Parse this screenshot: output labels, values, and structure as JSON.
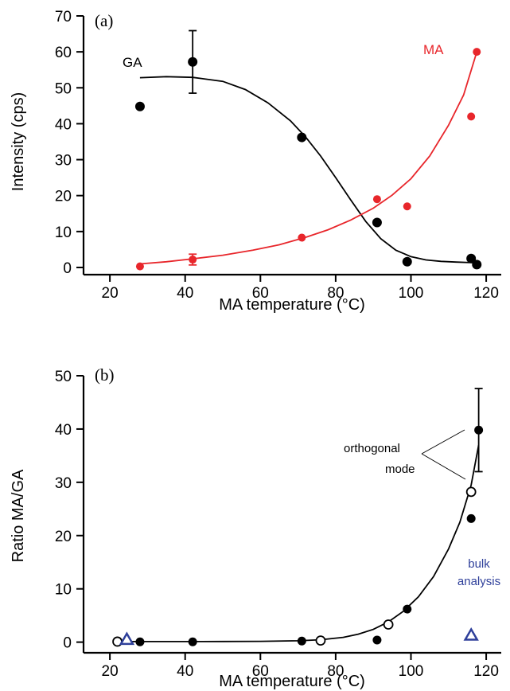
{
  "chart_data": [
    {
      "type": "scatter",
      "panel_label": "(a)",
      "xlabel": "MA temperature (°C)",
      "ylabel": "Intensity (cps)",
      "xlim": [
        13,
        124
      ],
      "ylim": [
        -2,
        70
      ],
      "xticks": [
        20,
        40,
        60,
        80,
        100,
        120
      ],
      "yticks": [
        0,
        10,
        20,
        30,
        40,
        50,
        60,
        70
      ],
      "grid": false,
      "series": [
        {
          "name": "GA",
          "color": "#000000",
          "x": [
            28,
            42,
            71,
            91,
            99,
            116,
            117.5
          ],
          "y": [
            44.8,
            57.2,
            36.2,
            12.5,
            1.6,
            2.5,
            0.8
          ],
          "error": [
            null,
            8.7,
            null,
            null,
            null,
            null,
            null
          ],
          "fit": {
            "x": [
              28,
              35,
              42,
              50,
              56,
              62,
              68,
              72,
              76,
              80,
              84,
              88,
              92,
              96,
              100,
              104,
              108,
              112,
              117.5
            ],
            "y": [
              52.8,
              53.1,
              52.9,
              51.8,
              49.5,
              45.8,
              40.8,
              36.3,
              31.0,
              25.0,
              18.8,
              12.8,
              8.0,
              4.8,
              3.0,
              2.1,
              1.7,
              1.5,
              1.3
            ]
          }
        },
        {
          "name": "MA",
          "color": "#e8262b",
          "x": [
            28,
            42,
            71,
            91,
            99,
            116,
            117.5
          ],
          "y": [
            0.3,
            2.2,
            8.3,
            19.0,
            17.0,
            42.0,
            60.0
          ],
          "error": [
            null,
            1.5,
            null,
            null,
            null,
            null,
            null
          ],
          "fit": {
            "x": [
              28,
              35,
              42,
              50,
              58,
              65,
              72,
              78,
              84,
              90,
              95,
              100,
              105,
              110,
              114,
              117.5
            ],
            "y": [
              1.0,
              1.6,
              2.4,
              3.4,
              4.8,
              6.3,
              8.4,
              10.5,
              13.2,
              16.5,
              20.1,
              24.7,
              31.0,
              39.6,
              48.0,
              60.0
            ]
          }
        }
      ]
    },
    {
      "type": "scatter",
      "panel_label": "(b)",
      "xlabel": "MA temperature (°C)",
      "ylabel": "Ratio MA/GA",
      "xlim": [
        13,
        124
      ],
      "ylim": [
        -2,
        50
      ],
      "xticks": [
        20,
        40,
        60,
        80,
        100,
        120
      ],
      "yticks": [
        0,
        10,
        20,
        30,
        40,
        50
      ],
      "grid": false,
      "series": [
        {
          "name": "",
          "marker": "filled-circle",
          "color": "#000000",
          "x": [
            28,
            42,
            71,
            91,
            99,
            116,
            118
          ],
          "y": [
            0.05,
            0.05,
            0.2,
            0.4,
            6.2,
            23.2,
            39.8
          ],
          "error": [
            null,
            null,
            null,
            null,
            null,
            null,
            7.8
          ]
        },
        {
          "name": "",
          "marker": "open-circle",
          "color": "#000000",
          "x": [
            22,
            76,
            94,
            116
          ],
          "y": [
            0.1,
            0.3,
            3.3,
            28.2
          ],
          "error": [
            null,
            null,
            null,
            null
          ]
        },
        {
          "name": "",
          "marker": "open-triangle",
          "color": "#2e3f9a",
          "x": [
            24.5,
            116
          ],
          "y": [
            0.4,
            1.2
          ],
          "error": [
            null,
            null
          ]
        }
      ],
      "fit": {
        "x": [
          22,
          30,
          40,
          50,
          60,
          70,
          76,
          82,
          86,
          90,
          94,
          98,
          102,
          106,
          110,
          113,
          116,
          118
        ],
        "y": [
          0.1,
          0.1,
          0.1,
          0.12,
          0.15,
          0.25,
          0.45,
          0.9,
          1.5,
          2.4,
          3.8,
          5.8,
          8.5,
          12.3,
          17.5,
          22.5,
          29.5,
          37.0
        ]
      },
      "annotations": {
        "orthogonal": "orthogonal",
        "mode": "mode",
        "bulk": "bulk",
        "analysis": "analysis"
      }
    }
  ]
}
